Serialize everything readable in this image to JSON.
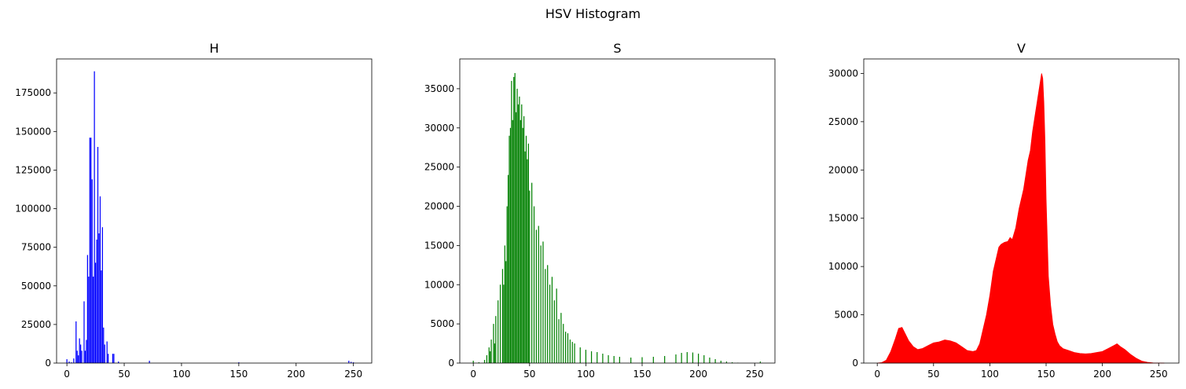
{
  "figure_title": "HSV Histogram",
  "chart_data": [
    {
      "type": "bar",
      "title": "H",
      "color": "#0000ff",
      "xlim": [
        -9,
        266
      ],
      "ylim": [
        0,
        197000
      ],
      "xticks": [
        0,
        50,
        100,
        150,
        200,
        250
      ],
      "yticks": [
        0,
        25000,
        50000,
        75000,
        100000,
        125000,
        150000,
        175000
      ],
      "grid": false,
      "points": [
        [
          0,
          2500
        ],
        [
          2,
          1000
        ],
        [
          4,
          500
        ],
        [
          6,
          3000
        ],
        [
          8,
          27000
        ],
        [
          9,
          8000
        ],
        [
          10,
          5000
        ],
        [
          11,
          16000
        ],
        [
          12,
          12000
        ],
        [
          13,
          8000
        ],
        [
          15,
          40000
        ],
        [
          16,
          8000
        ],
        [
          17,
          15000
        ],
        [
          18,
          70000
        ],
        [
          19,
          56000
        ],
        [
          20,
          146000
        ],
        [
          21,
          146000
        ],
        [
          22,
          119000
        ],
        [
          23,
          56000
        ],
        [
          24,
          189000
        ],
        [
          25,
          65000
        ],
        [
          26,
          80000
        ],
        [
          27,
          140000
        ],
        [
          28,
          84000
        ],
        [
          29,
          108000
        ],
        [
          30,
          60000
        ],
        [
          31,
          88000
        ],
        [
          32,
          23000
        ],
        [
          33,
          12000
        ],
        [
          35,
          14000
        ],
        [
          36,
          6000
        ],
        [
          40,
          6000
        ],
        [
          41,
          6000
        ],
        [
          45,
          1000
        ],
        [
          72,
          1500
        ],
        [
          150,
          500
        ],
        [
          246,
          1500
        ],
        [
          248,
          800
        ],
        [
          250,
          500
        ]
      ]
    },
    {
      "type": "bar",
      "title": "S",
      "color": "#008000",
      "xlim": [
        -12,
        268
      ],
      "ylim": [
        0,
        38800
      ],
      "xticks": [
        0,
        50,
        100,
        150,
        200,
        250
      ],
      "yticks": [
        0,
        5000,
        10000,
        15000,
        20000,
        25000,
        30000,
        35000
      ],
      "grid": false,
      "points": [
        [
          0,
          300
        ],
        [
          5,
          100
        ],
        [
          10,
          400
        ],
        [
          12,
          1000
        ],
        [
          14,
          2000
        ],
        [
          15,
          1500
        ],
        [
          16,
          3000
        ],
        [
          18,
          5000
        ],
        [
          19,
          2500
        ],
        [
          20,
          6000
        ],
        [
          22,
          8000
        ],
        [
          24,
          10000
        ],
        [
          26,
          12000
        ],
        [
          27,
          10000
        ],
        [
          28,
          15000
        ],
        [
          29,
          13000
        ],
        [
          30,
          20000
        ],
        [
          31,
          24000
        ],
        [
          32,
          29000
        ],
        [
          33,
          30000
        ],
        [
          34,
          36000
        ],
        [
          35,
          31000
        ],
        [
          36,
          36500
        ],
        [
          37,
          37000
        ],
        [
          38,
          32000
        ],
        [
          39,
          35000
        ],
        [
          40,
          33000
        ],
        [
          41,
          34000
        ],
        [
          42,
          31000
        ],
        [
          43,
          33000
        ],
        [
          44,
          30000
        ],
        [
          45,
          31500
        ],
        [
          46,
          27000
        ],
        [
          47,
          29000
        ],
        [
          48,
          26000
        ],
        [
          49,
          28000
        ],
        [
          50,
          22000
        ],
        [
          52,
          23000
        ],
        [
          54,
          20000
        ],
        [
          56,
          17000
        ],
        [
          58,
          17500
        ],
        [
          60,
          15000
        ],
        [
          62,
          15500
        ],
        [
          64,
          12000
        ],
        [
          66,
          12500
        ],
        [
          68,
          10000
        ],
        [
          70,
          11000
        ],
        [
          72,
          8000
        ],
        [
          74,
          9500
        ],
        [
          76,
          5600
        ],
        [
          78,
          6400
        ],
        [
          80,
          5000
        ],
        [
          82,
          4000
        ],
        [
          84,
          3800
        ],
        [
          86,
          3000
        ],
        [
          88,
          2700
        ],
        [
          90,
          2500
        ],
        [
          95,
          2000
        ],
        [
          100,
          1700
        ],
        [
          105,
          1500
        ],
        [
          110,
          1400
        ],
        [
          115,
          1200
        ],
        [
          120,
          1000
        ],
        [
          125,
          900
        ],
        [
          130,
          800
        ],
        [
          140,
          700
        ],
        [
          150,
          750
        ],
        [
          160,
          800
        ],
        [
          170,
          900
        ],
        [
          180,
          1100
        ],
        [
          185,
          1300
        ],
        [
          190,
          1400
        ],
        [
          195,
          1350
        ],
        [
          200,
          1200
        ],
        [
          205,
          1000
        ],
        [
          210,
          700
        ],
        [
          215,
          500
        ],
        [
          220,
          300
        ],
        [
          225,
          200
        ],
        [
          230,
          100
        ],
        [
          235,
          50
        ],
        [
          255,
          200
        ]
      ]
    },
    {
      "type": "area",
      "title": "V",
      "color": "#ff0000",
      "xlim": [
        -12,
        268
      ],
      "ylim": [
        0,
        31500
      ],
      "xticks": [
        0,
        50,
        100,
        150,
        200,
        250
      ],
      "yticks": [
        0,
        5000,
        10000,
        15000,
        20000,
        25000,
        30000
      ],
      "grid": false,
      "points": [
        [
          0,
          0
        ],
        [
          4,
          50
        ],
        [
          8,
          300
        ],
        [
          12,
          1200
        ],
        [
          16,
          2500
        ],
        [
          19,
          3600
        ],
        [
          22,
          3700
        ],
        [
          25,
          3000
        ],
        [
          28,
          2300
        ],
        [
          32,
          1700
        ],
        [
          36,
          1400
        ],
        [
          40,
          1500
        ],
        [
          45,
          1800
        ],
        [
          50,
          2100
        ],
        [
          55,
          2200
        ],
        [
          60,
          2400
        ],
        [
          65,
          2300
        ],
        [
          70,
          2100
        ],
        [
          75,
          1700
        ],
        [
          80,
          1300
        ],
        [
          85,
          1200
        ],
        [
          88,
          1300
        ],
        [
          91,
          2000
        ],
        [
          94,
          3500
        ],
        [
          97,
          5000
        ],
        [
          100,
          7000
        ],
        [
          103,
          9500
        ],
        [
          106,
          11000
        ],
        [
          108,
          12000
        ],
        [
          110,
          12300
        ],
        [
          113,
          12500
        ],
        [
          116,
          12600
        ],
        [
          118,
          13000
        ],
        [
          120,
          12800
        ],
        [
          123,
          14000
        ],
        [
          126,
          16000
        ],
        [
          128,
          17000
        ],
        [
          130,
          18000
        ],
        [
          132,
          19500
        ],
        [
          134,
          21000
        ],
        [
          136,
          22000
        ],
        [
          138,
          24000
        ],
        [
          140,
          25500
        ],
        [
          142,
          27000
        ],
        [
          144,
          28500
        ],
        [
          146,
          30000
        ],
        [
          147,
          29500
        ],
        [
          148,
          27000
        ],
        [
          149,
          23000
        ],
        [
          150,
          17000
        ],
        [
          151,
          13000
        ],
        [
          152,
          9000
        ],
        [
          154,
          6000
        ],
        [
          156,
          4000
        ],
        [
          158,
          3000
        ],
        [
          160,
          2200
        ],
        [
          162,
          1800
        ],
        [
          165,
          1500
        ],
        [
          170,
          1300
        ],
        [
          175,
          1100
        ],
        [
          180,
          1000
        ],
        [
          185,
          950
        ],
        [
          190,
          1000
        ],
        [
          195,
          1100
        ],
        [
          200,
          1200
        ],
        [
          205,
          1500
        ],
        [
          210,
          1800
        ],
        [
          213,
          2000
        ],
        [
          216,
          1700
        ],
        [
          220,
          1400
        ],
        [
          225,
          900
        ],
        [
          230,
          500
        ],
        [
          235,
          200
        ],
        [
          240,
          80
        ],
        [
          245,
          20
        ],
        [
          255,
          0
        ]
      ]
    }
  ]
}
